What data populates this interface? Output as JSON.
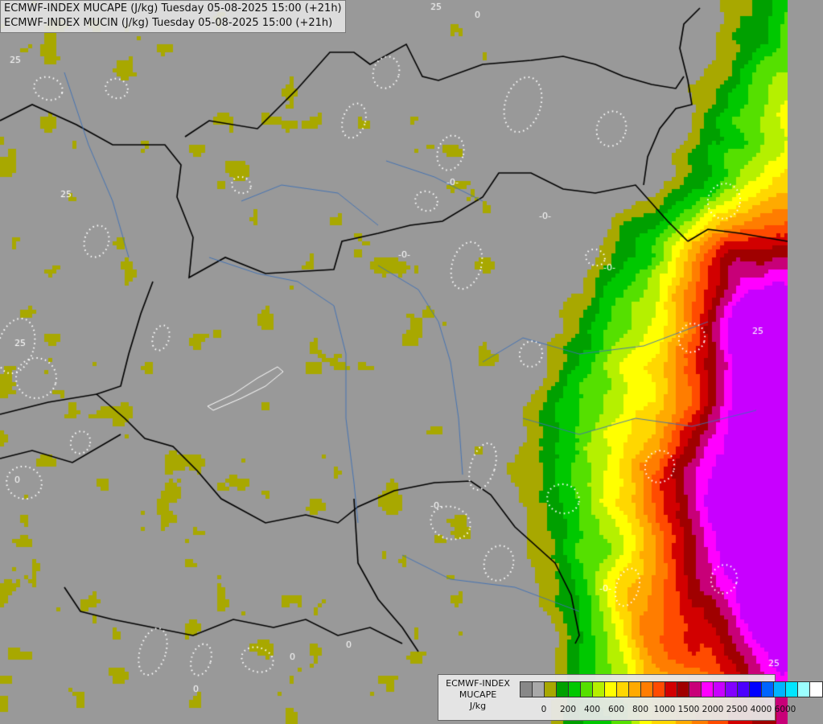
{
  "header": {
    "line1": "ECMWF-INDEX MUCAPE (J/kg) Tuesday 05-08-2025 15:00 (+21h)",
    "line2": "ECMWF-INDEX MUCIN (J/kg) Tuesday 05-08-2025 15:00 (+21h)"
  },
  "legend": {
    "line1": "ECMWF-INDEX",
    "line2": "MUCAPE",
    "line3": "J/kg",
    "colors": [
      "#888888",
      "#a8a8a8",
      "#a8a800",
      "#00a000",
      "#00c800",
      "#55e000",
      "#b5f000",
      "#ffff00",
      "#ffd700",
      "#ffaa00",
      "#ff7d00",
      "#ff4b00",
      "#d20000",
      "#a00000",
      "#c80078",
      "#ff00ff",
      "#c800ff",
      "#8200ff",
      "#4b00ff",
      "#0000ff",
      "#0064ff",
      "#00b4ff",
      "#00e6ff",
      "#9bffff",
      "#ffffff"
    ],
    "ticks": [
      {
        "label": "0",
        "at": 1
      },
      {
        "label": "200",
        "at": 3
      },
      {
        "label": "400",
        "at": 5
      },
      {
        "label": "600",
        "at": 7
      },
      {
        "label": "800",
        "at": 9
      },
      {
        "label": "1000",
        "at": 11
      },
      {
        "label": "1500",
        "at": 13
      },
      {
        "label": "2000",
        "at": 15
      },
      {
        "label": "2500",
        "at": 17
      },
      {
        "label": "4000",
        "at": 19
      },
      {
        "label": "6000",
        "at": 21
      }
    ]
  },
  "map": {
    "background_color": "#999999",
    "mucin_contour_labels": [
      "25",
      "-0-",
      "0"
    ]
  }
}
